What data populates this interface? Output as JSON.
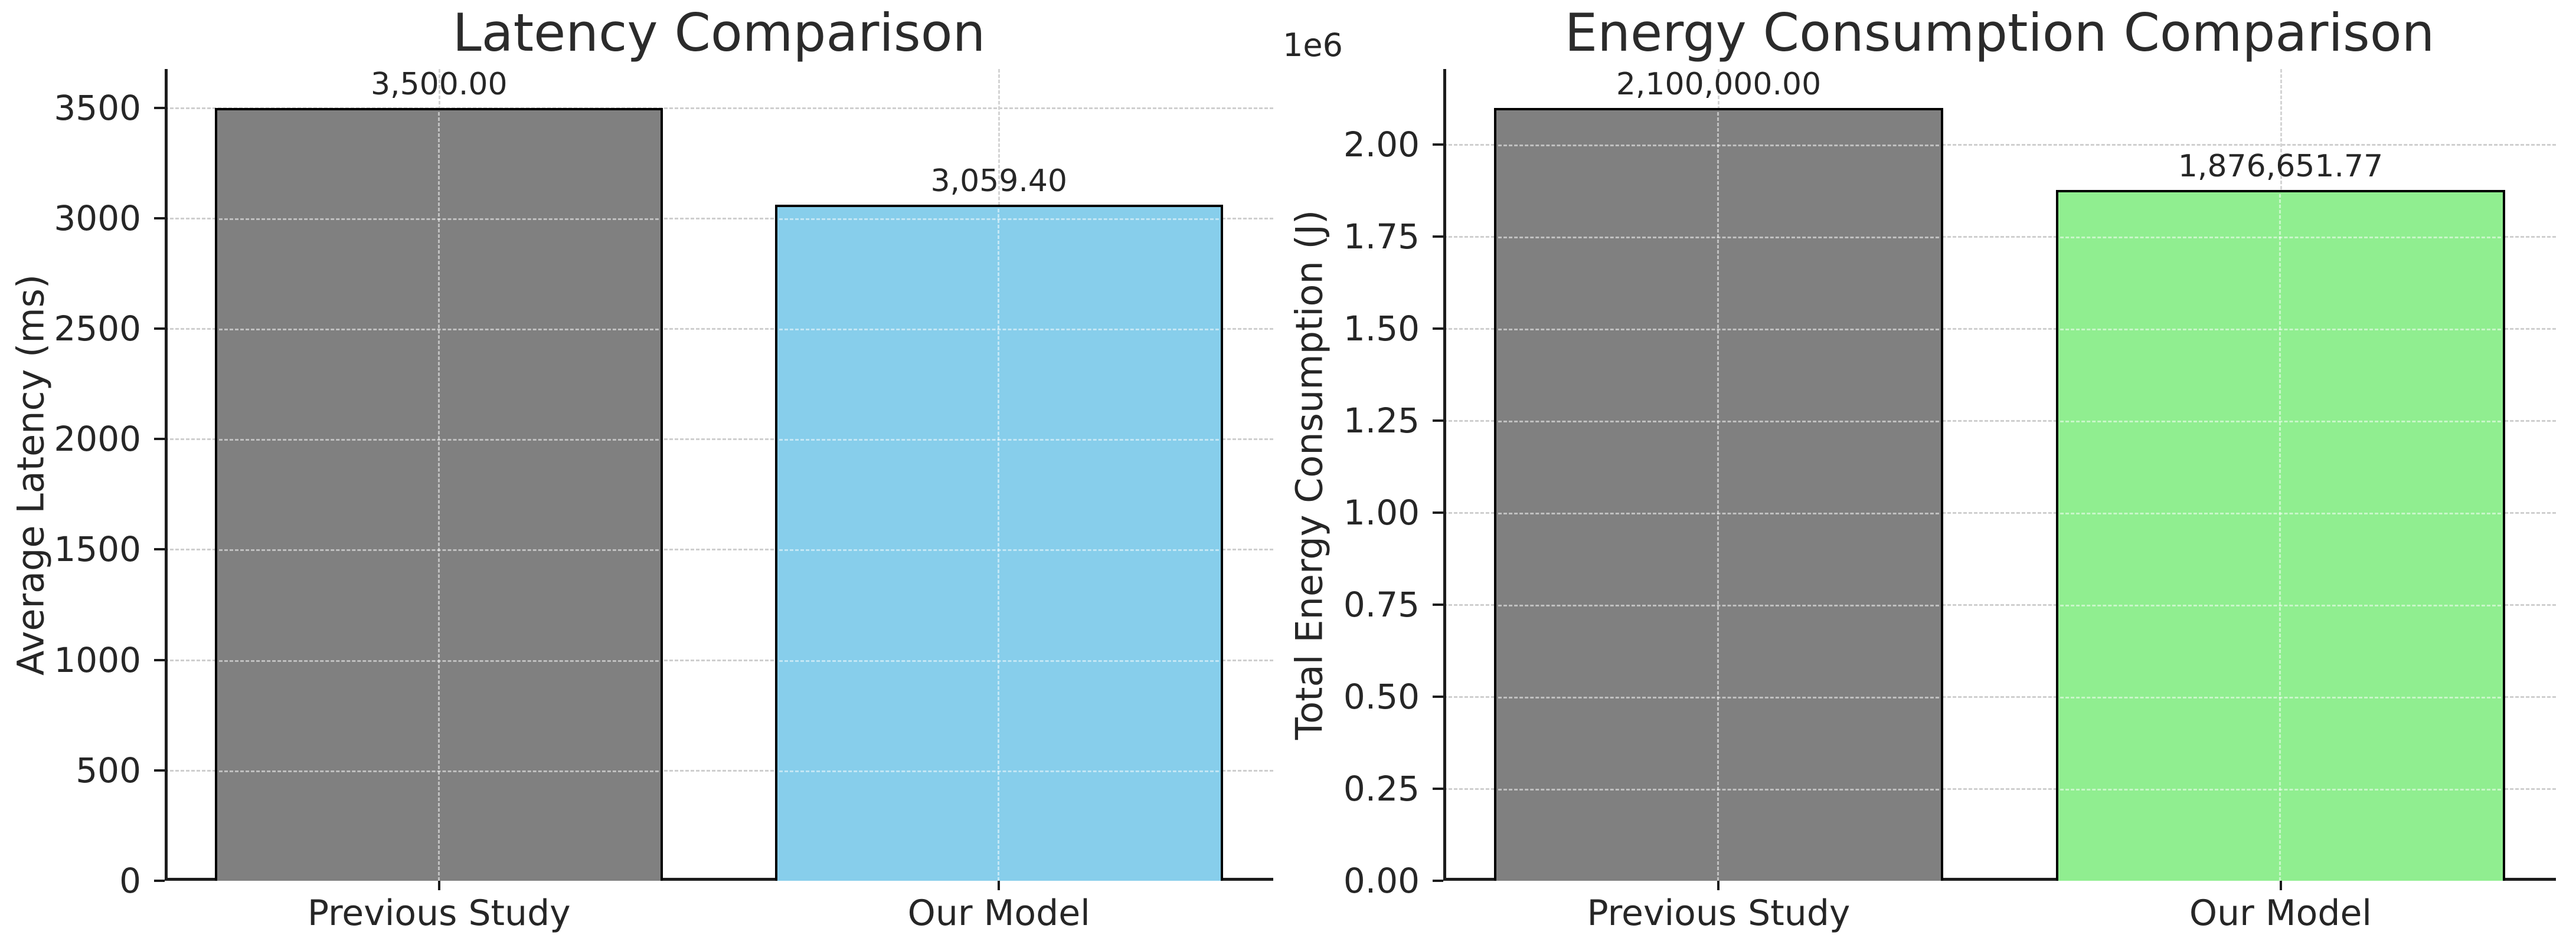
{
  "figure": {
    "background": "#ffffff"
  },
  "chart_data": [
    {
      "type": "bar",
      "title": "Latency Comparison",
      "ylabel": "Average Latency (ms)",
      "xlabel": "",
      "categories": [
        "Previous Study",
        "Our Model"
      ],
      "values": [
        3500,
        3059.4
      ],
      "value_labels": [
        "3,500.00",
        "3,059.40"
      ],
      "bar_colors": [
        "#808080",
        "#87CEEB"
      ],
      "bar_edge_color": "#000000",
      "ylim": [
        0,
        3675
      ],
      "yticks": [
        0,
        500,
        1000,
        1500,
        2000,
        2500,
        3000,
        3500
      ],
      "ytick_labels": [
        "0",
        "500",
        "1000",
        "1500",
        "2000",
        "2500",
        "3000",
        "3500"
      ],
      "offset_text": "",
      "grid": "on",
      "legend": "none"
    },
    {
      "type": "bar",
      "title": "Energy Consumption Comparison",
      "ylabel": "Total Energy Consumption (J)",
      "xlabel": "",
      "categories": [
        "Previous Study",
        "Our Model"
      ],
      "values": [
        2100000,
        1876651.77
      ],
      "value_labels": [
        "2,100,000.00",
        "1,876,651.77"
      ],
      "bar_colors": [
        "#808080",
        "#90EE90"
      ],
      "bar_edge_color": "#000000",
      "ylim": [
        0,
        2205000
      ],
      "yticks": [
        0,
        250000,
        500000,
        750000,
        1000000,
        1250000,
        1500000,
        1750000,
        2000000
      ],
      "ytick_labels": [
        "0.00",
        "0.25",
        "0.50",
        "0.75",
        "1.00",
        "1.25",
        "1.50",
        "1.75",
        "2.00"
      ],
      "offset_text": "1e6",
      "grid": "on",
      "legend": "none"
    }
  ]
}
